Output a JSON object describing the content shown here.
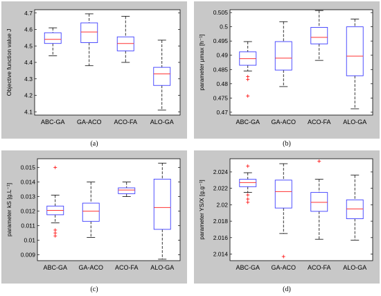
{
  "chart_data": [
    {
      "type": "box",
      "caption": "(a)",
      "ylabel": "Objective function value J",
      "ylim": [
        4.08,
        4.72
      ],
      "yticks": [
        4.1,
        4.2,
        4.3,
        4.4,
        4.5,
        4.6,
        4.7
      ],
      "ytick_labels": [
        "4.1",
        "4.2",
        "4.3",
        "4.4",
        "4.5",
        "4.6",
        "4.7"
      ],
      "categories": [
        "ABC-GA",
        "GA-ACO",
        "ACO-FA",
        "ALO-GA"
      ],
      "boxes": [
        {
          "lw": 4.44,
          "q1": 4.515,
          "med": 4.54,
          "q3": 4.58,
          "uw": 4.61,
          "outliers": []
        },
        {
          "lw": 4.38,
          "q1": 4.52,
          "med": 4.585,
          "q3": 4.64,
          "uw": 4.695,
          "outliers": []
        },
        {
          "lw": 4.4,
          "q1": 4.47,
          "med": 4.515,
          "q3": 4.555,
          "uw": 4.68,
          "outliers": []
        },
        {
          "lw": 4.11,
          "q1": 4.26,
          "med": 4.33,
          "q3": 4.37,
          "uw": 4.535,
          "outliers": []
        }
      ]
    },
    {
      "type": "box",
      "caption": "(b)",
      "ylabel": "parameter μmax [h⁻¹]",
      "ylim": [
        0.469,
        0.506
      ],
      "yticks": [
        0.47,
        0.475,
        0.48,
        0.485,
        0.49,
        0.495,
        0.5,
        0.505
      ],
      "ytick_labels": [
        "0.47",
        "0.475",
        "0.48",
        "0.485",
        "0.49",
        "0.495",
        "0.5",
        "0.505"
      ],
      "categories": [
        "ABC-GA",
        "GA-ACO",
        "ACO-FA",
        "ALO-GA"
      ],
      "boxes": [
        {
          "lw": 0.4845,
          "q1": 0.4865,
          "med": 0.4888,
          "q3": 0.4912,
          "uw": 0.4948,
          "outliers": [
            0.4825,
            0.4815,
            0.4757
          ]
        },
        {
          "lw": 0.479,
          "q1": 0.4848,
          "med": 0.489,
          "q3": 0.4948,
          "uw": 0.5018,
          "outliers": []
        },
        {
          "lw": 0.4882,
          "q1": 0.494,
          "med": 0.4963,
          "q3": 0.4998,
          "uw": 0.5057,
          "outliers": []
        },
        {
          "lw": 0.4712,
          "q1": 0.4828,
          "med": 0.4897,
          "q3": 0.5,
          "uw": 0.5027,
          "outliers": []
        }
      ]
    },
    {
      "type": "box",
      "caption": "(c)",
      "ylabel": "parameter kS [g.L⁻¹]",
      "ylim": [
        0.0086,
        0.0156
      ],
      "yticks": [
        0.009,
        0.01,
        0.011,
        0.012,
        0.013,
        0.014,
        0.015
      ],
      "ytick_labels": [
        "0.009",
        "0.01",
        "0.011",
        "0.012",
        "0.013",
        "0.014",
        "0.015"
      ],
      "categories": [
        "ABC-GA",
        "GA-ACO",
        "ACO-FA",
        "ALO-GA"
      ],
      "boxes": [
        {
          "lw": 0.0112,
          "q1": 0.01175,
          "med": 0.01205,
          "q3": 0.01235,
          "uw": 0.0131,
          "outliers": [
            0.0107,
            0.0105,
            0.0103,
            0.015
          ]
        },
        {
          "lw": 0.0102,
          "q1": 0.0113,
          "med": 0.012,
          "q3": 0.01255,
          "uw": 0.014,
          "outliers": []
        },
        {
          "lw": 0.013,
          "q1": 0.0132,
          "med": 0.01345,
          "q3": 0.0136,
          "uw": 0.014,
          "outliers": []
        },
        {
          "lw": 0.0087,
          "q1": 0.01075,
          "med": 0.01225,
          "q3": 0.0142,
          "uw": 0.0153,
          "outliers": []
        }
      ]
    },
    {
      "type": "box",
      "caption": "(d)",
      "ylabel": "parameter YS/X [g.g⁻¹]",
      "ylim": [
        2.0132,
        2.0256
      ],
      "yticks": [
        2.014,
        2.016,
        2.018,
        2.02,
        2.022,
        2.024
      ],
      "ytick_labels": [
        "2.014",
        "2.016",
        "2.018",
        "2.02",
        "2.022",
        "2.024"
      ],
      "categories": [
        "ABC-GA",
        "GA-ACO",
        "ACO-FA",
        "ALO-GA"
      ],
      "boxes": [
        {
          "lw": 2.0215,
          "q1": 2.0222,
          "med": 2.0227,
          "q3": 2.0231,
          "uw": 2.0239,
          "outliers": [
            2.0247,
            2.0212,
            2.0207,
            2.0203
          ]
        },
        {
          "lw": 2.0165,
          "q1": 2.0196,
          "med": 2.0216,
          "q3": 2.023,
          "uw": 2.025,
          "outliers": [
            2.0137
          ]
        },
        {
          "lw": 2.0158,
          "q1": 2.0192,
          "med": 2.0203,
          "q3": 2.0215,
          "uw": 2.0231,
          "outliers": [
            2.0253
          ]
        },
        {
          "lw": 2.0157,
          "q1": 2.0183,
          "med": 2.0195,
          "q3": 2.0206,
          "uw": 2.0236,
          "outliers": []
        }
      ]
    }
  ],
  "colors": {
    "panel_bg": "#c8c8c8",
    "plot_bg": "#ffffff",
    "box": "#3b3bff",
    "median": "#ff3030",
    "whisker": "#000000",
    "outlier": "#ff0000"
  }
}
